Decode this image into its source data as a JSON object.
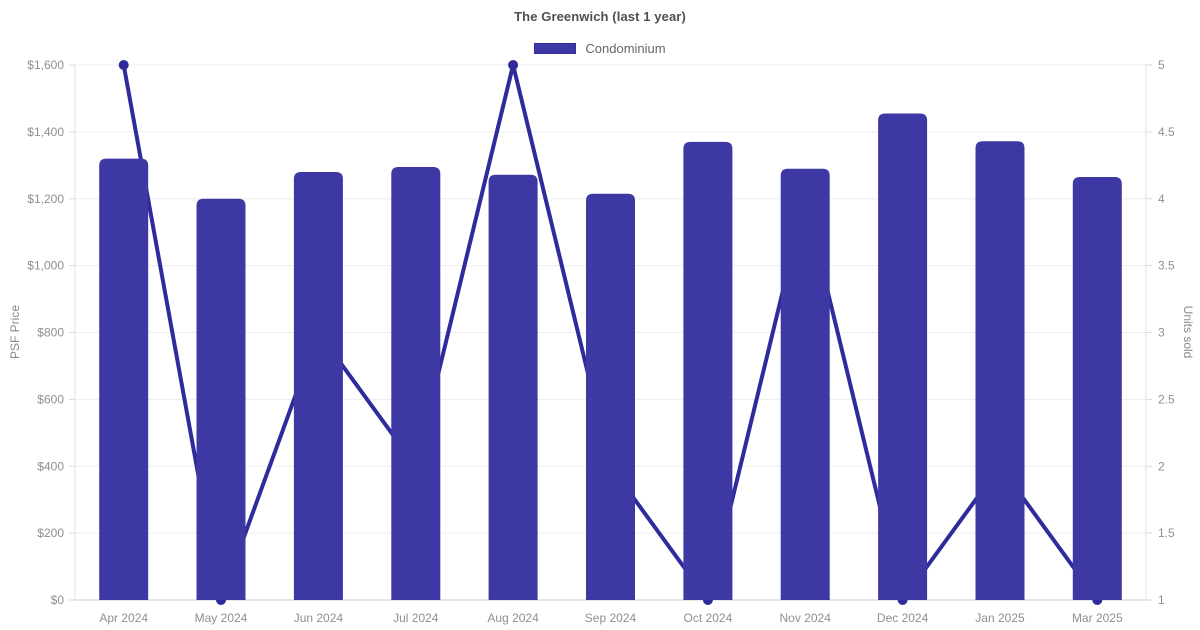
{
  "header": {
    "title": "The Greenwich (last 1 year)"
  },
  "legend": [
    {
      "label": "Condominium",
      "color": "#3d38a3"
    }
  ],
  "chart_data": {
    "type": "bar",
    "title": "The Greenwich (last 1 year)",
    "categories": [
      "Apr 2024",
      "May 2024",
      "Jun 2024",
      "Jul 2024",
      "Aug 2024",
      "Sep 2024",
      "Oct 2024",
      "Nov 2024",
      "Dec 2024",
      "Jan 2025",
      "Mar 2025"
    ],
    "series": [
      {
        "name": "Condominium",
        "type": "bar",
        "axis": "left",
        "color": "#3d38a3",
        "values": [
          1320,
          1200,
          1280,
          1295,
          1272,
          1215,
          1370,
          1290,
          1455,
          1372,
          1265
        ]
      },
      {
        "name": "Units sold",
        "type": "line",
        "axis": "right",
        "color": "#2f2b9d",
        "values": [
          5,
          1,
          3,
          2,
          5,
          2,
          1,
          4,
          1,
          2,
          1
        ]
      }
    ],
    "left_axis": {
      "label": "PSF Price",
      "min": 0,
      "max": 1600,
      "step": 200,
      "tick_prefix": "$"
    },
    "right_axis": {
      "label": "Units sold",
      "min": 1,
      "max": 5,
      "step": 0.5,
      "tick_prefix": ""
    },
    "grid": true,
    "legend_position": "top"
  }
}
